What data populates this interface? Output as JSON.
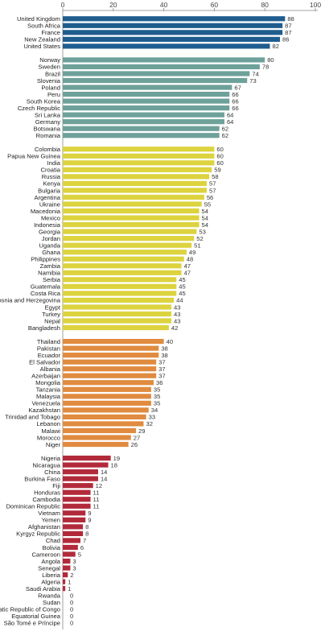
{
  "chart_data": {
    "type": "bar",
    "orientation": "horizontal",
    "title": "",
    "xlabel": "",
    "ylabel": "",
    "xlim": [
      0,
      100
    ],
    "x_ticks": [
      "0",
      "20",
      "40",
      "60",
      "80",
      "100"
    ],
    "grid": false,
    "legend": "none",
    "groups": [
      {
        "color": "#1f5d8f",
        "items": [
          {
            "label": "United Kingdom",
            "value": 88
          },
          {
            "label": "South Africa",
            "value": 87
          },
          {
            "label": "France",
            "value": 87
          },
          {
            "label": "New Zealand",
            "value": 86
          },
          {
            "label": "United States",
            "value": 82
          }
        ]
      },
      {
        "color": "#6ea19a",
        "items": [
          {
            "label": "Norway",
            "value": 80
          },
          {
            "label": "Sweden",
            "value": 78
          },
          {
            "label": "Brazil",
            "value": 74
          },
          {
            "label": "Slovenia",
            "value": 73
          },
          {
            "label": "Poland",
            "value": 67
          },
          {
            "label": "Peru",
            "value": 66
          },
          {
            "label": "South Korea",
            "value": 66
          },
          {
            "label": "Czech Republic",
            "value": 66
          },
          {
            "label": "Sri Lanka",
            "value": 64
          },
          {
            "label": "Germany",
            "value": 64
          },
          {
            "label": "Botswana",
            "value": 62
          },
          {
            "label": "Romania",
            "value": 62
          }
        ]
      },
      {
        "color": "#dcd33e",
        "items": [
          {
            "label": "Colombia",
            "value": 60
          },
          {
            "label": "Papua New Guinea",
            "value": 60
          },
          {
            "label": "India",
            "value": 60
          },
          {
            "label": "Croatia",
            "value": 59
          },
          {
            "label": "Russia",
            "value": 58
          },
          {
            "label": "Kenya",
            "value": 57
          },
          {
            "label": "Bulgaria",
            "value": 57
          },
          {
            "label": "Argentina",
            "value": 56
          },
          {
            "label": "Ukraine",
            "value": 55
          },
          {
            "label": "Macedonia",
            "value": 54
          },
          {
            "label": "Mexico",
            "value": 54
          },
          {
            "label": "Indonesia",
            "value": 54
          },
          {
            "label": "Georgia",
            "value": 53
          },
          {
            "label": "Jordan",
            "value": 52
          },
          {
            "label": "Uganda",
            "value": 51
          },
          {
            "label": "Ghana",
            "value": 49
          },
          {
            "label": "Philippines",
            "value": 48
          },
          {
            "label": "Zambia",
            "value": 47
          },
          {
            "label": "Namibia",
            "value": 47
          },
          {
            "label": "Serbia",
            "value": 45
          },
          {
            "label": "Guatemala",
            "value": 45
          },
          {
            "label": "Costa Rica",
            "value": 45
          },
          {
            "label": "Bosnia and Herzegovina",
            "value": 44
          },
          {
            "label": "Egypt",
            "value": 43
          },
          {
            "label": "Turkey",
            "value": 43
          },
          {
            "label": "Nepal",
            "value": 43
          },
          {
            "label": "Bangladesh",
            "value": 42
          }
        ]
      },
      {
        "color": "#e08b3f",
        "items": [
          {
            "label": "Thailand",
            "value": 40
          },
          {
            "label": "Pakistan",
            "value": 38
          },
          {
            "label": "Ecuador",
            "value": 38
          },
          {
            "label": "El Salvador",
            "value": 37
          },
          {
            "label": "Albania",
            "value": 37
          },
          {
            "label": "Azerbaijan",
            "value": 37
          },
          {
            "label": "Mongolia",
            "value": 36
          },
          {
            "label": "Tanzania",
            "value": 35
          },
          {
            "label": "Malaysia",
            "value": 35
          },
          {
            "label": "Venezuela",
            "value": 35
          },
          {
            "label": "Kazakhstan",
            "value": 34
          },
          {
            "label": "Trinidad and Tobago",
            "value": 33
          },
          {
            "label": "Lebanon",
            "value": 32
          },
          {
            "label": "Malawi",
            "value": 29
          },
          {
            "label": "Morocco",
            "value": 27
          },
          {
            "label": "Niger",
            "value": 26
          }
        ]
      },
      {
        "color": "#b22a3a",
        "items": [
          {
            "label": "Nigeria",
            "value": 19
          },
          {
            "label": "Nicaragua",
            "value": 18
          },
          {
            "label": "China",
            "value": 14
          },
          {
            "label": "Burkina Faso",
            "value": 14
          },
          {
            "label": "Fiji",
            "value": 12
          },
          {
            "label": "Honduras",
            "value": 11
          },
          {
            "label": "Cambodia",
            "value": 11
          },
          {
            "label": "Dominican Republic",
            "value": 11
          },
          {
            "label": "Vietnam",
            "value": 9
          },
          {
            "label": "Yemen",
            "value": 9
          },
          {
            "label": "Afghanistan",
            "value": 8
          },
          {
            "label": "Kyrgyz Republic",
            "value": 8
          },
          {
            "label": "Chad",
            "value": 7
          },
          {
            "label": "Bolivia",
            "value": 6
          },
          {
            "label": "Cameroon",
            "value": 5
          },
          {
            "label": "Angola",
            "value": 3
          },
          {
            "label": "Senegal",
            "value": 3
          },
          {
            "label": "Liberia",
            "value": 2
          },
          {
            "label": "Algeria",
            "value": 1
          },
          {
            "label": "Saudi Arabia",
            "value": 1
          },
          {
            "label": "Rwanda",
            "value": 0
          },
          {
            "label": "Sudan",
            "value": 0
          },
          {
            "label": "Democratic Republic of Congo",
            "value": 0
          },
          {
            "label": "Equatorial Guinea",
            "value": 0
          },
          {
            "label": "São Tomé e Príncipe",
            "value": 0
          }
        ]
      }
    ]
  }
}
